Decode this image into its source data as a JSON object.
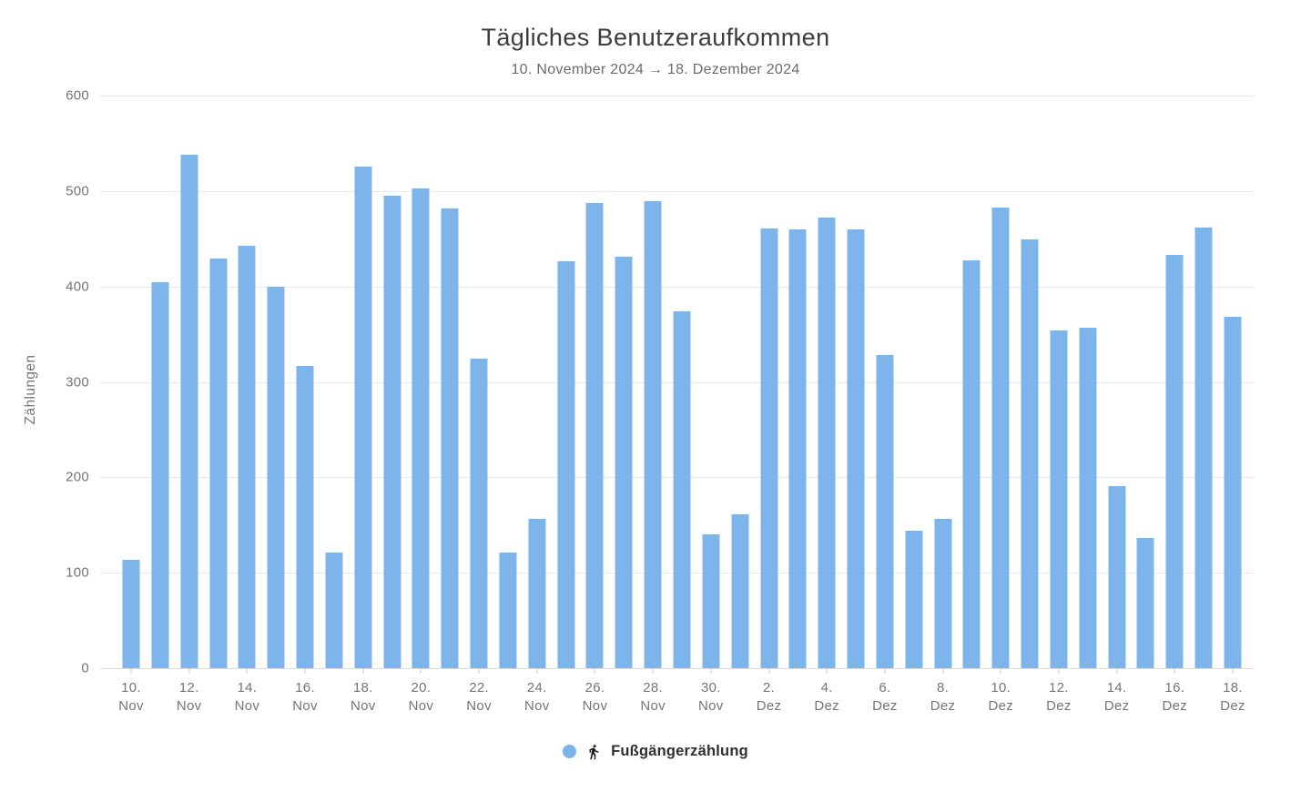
{
  "header": {
    "title": "Tägliches Benutzeraufkommen",
    "subtitle": "10. November 2024 → 18. Dezember 2024"
  },
  "legend": {
    "label": "Fußgängerzählung",
    "icon": "pedestrian-walking-icon",
    "swatch_color": "#7db4ea"
  },
  "colors": {
    "bar": "#7db4ea",
    "gridline": "#e9e9e9",
    "axis_text": "#757575",
    "title_text": "#3d3d3d",
    "subtitle_text": "#6b6b6b",
    "legend_text": "#2f2f2f",
    "tick_mark": "#b9cee8"
  },
  "chart_data": {
    "type": "bar",
    "title": "Tägliches Benutzeraufkommen",
    "subtitle": "10. November 2024 → 18. Dezember 2024",
    "xlabel": "",
    "ylabel": "Zählungen",
    "ylim": [
      0,
      600
    ],
    "yticks": [
      0,
      100,
      200,
      300,
      400,
      500,
      600
    ],
    "grid": true,
    "legend_position": "bottom",
    "x_label_every": 2,
    "x": [
      "10. Nov",
      "11. Nov",
      "12. Nov",
      "13. Nov",
      "14. Nov",
      "15. Nov",
      "16. Nov",
      "17. Nov",
      "18. Nov",
      "19. Nov",
      "20. Nov",
      "21. Nov",
      "22. Nov",
      "23. Nov",
      "24. Nov",
      "25. Nov",
      "26. Nov",
      "27. Nov",
      "28. Nov",
      "29. Nov",
      "30. Nov",
      "1. Dez",
      "2. Dez",
      "3. Dez",
      "4. Dez",
      "5. Dez",
      "6. Dez",
      "7. Dez",
      "8. Dez",
      "9. Dez",
      "10. Dez",
      "11. Dez",
      "12. Dez",
      "13. Dez",
      "14. Dez",
      "15. Dez",
      "16. Dez",
      "17. Dez",
      "18. Dez"
    ],
    "series": [
      {
        "name": "Fußgängerzählung",
        "values": [
          114,
          404,
          538,
          429,
          443,
          400,
          317,
          121,
          526,
          495,
          503,
          482,
          324,
          121,
          156,
          426,
          487,
          431,
          489,
          374,
          140,
          161,
          461,
          460,
          472,
          460,
          328,
          144,
          156,
          427,
          483,
          449,
          354,
          357,
          191,
          136,
          433,
          462,
          368
        ]
      }
    ]
  }
}
